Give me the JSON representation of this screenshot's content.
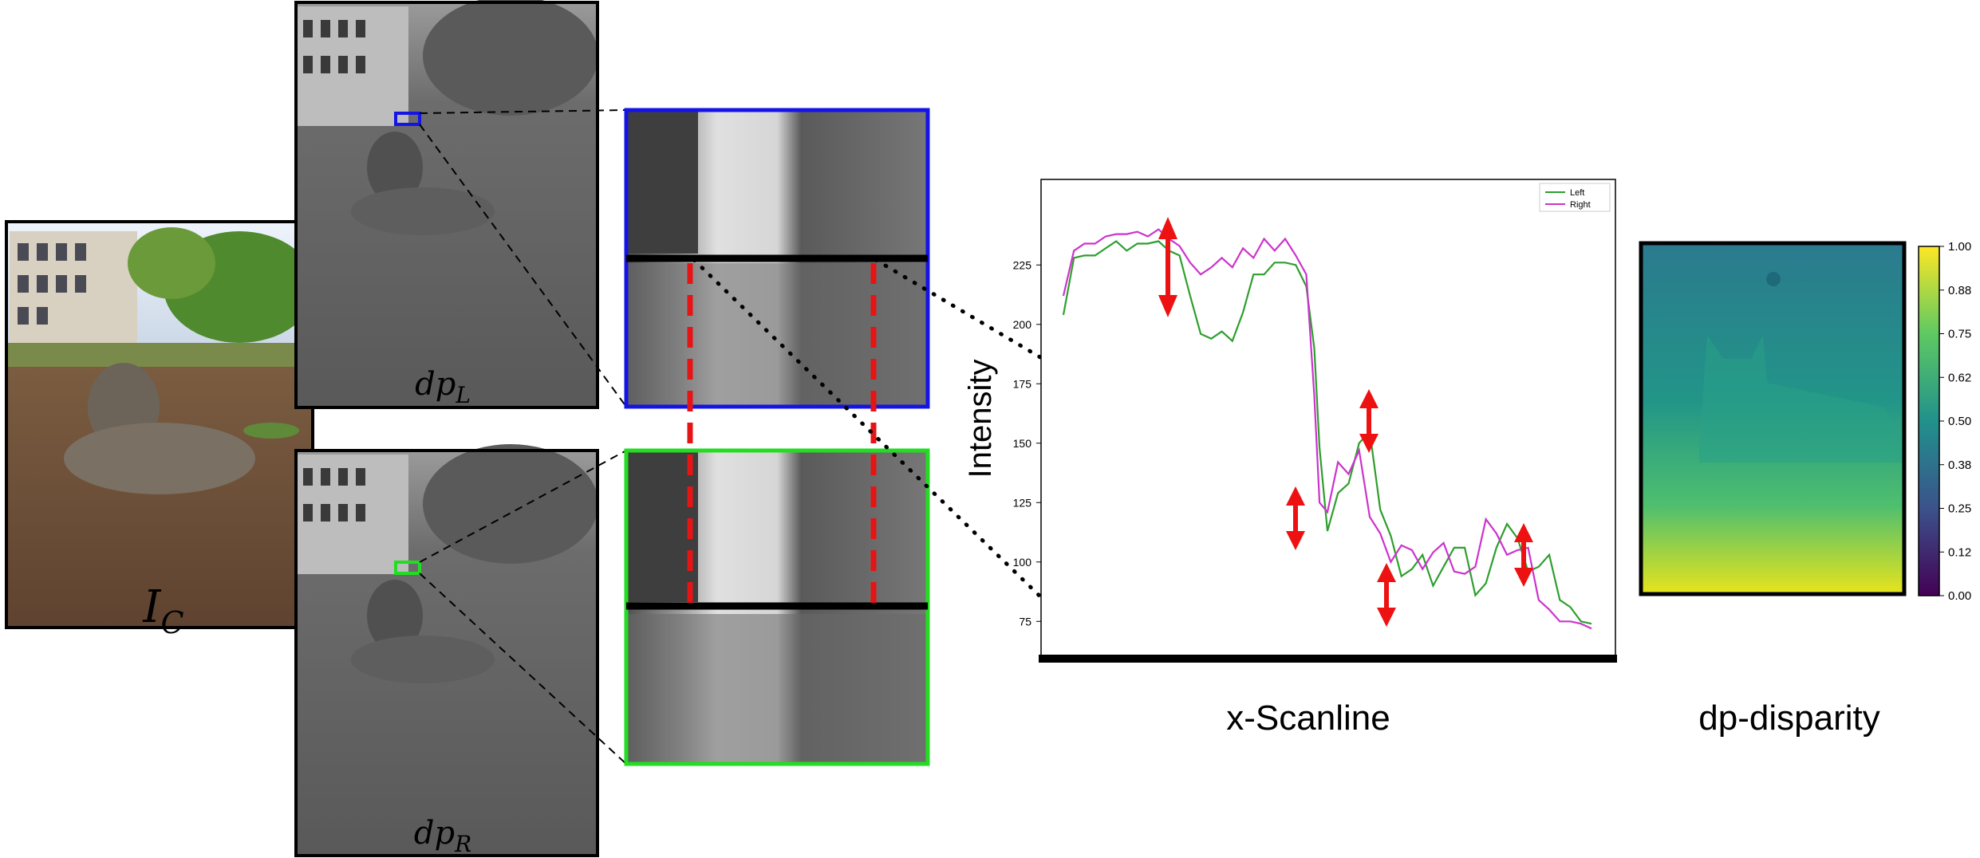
{
  "labels": {
    "color_image": "I",
    "color_image_sub": "C",
    "left_view": "dp",
    "left_view_sub": "L",
    "right_view": "dp",
    "right_view_sub": "R",
    "scanline_caption": "x-Scanline",
    "disparity_caption": "dp-disparity"
  },
  "chart_data": {
    "type": "line",
    "title": "",
    "xlabel": "",
    "ylabel": "Intensity",
    "xlim": [
      0,
      100
    ],
    "ylim": [
      62,
      260
    ],
    "yticks": [
      75,
      100,
      125,
      150,
      175,
      200,
      225
    ],
    "legend": "top-right",
    "series": [
      {
        "name": "Left",
        "color": "#2e9e2e",
        "x": [
          0,
          2,
          4,
          6,
          8,
          10,
          12,
          14,
          16,
          18,
          20,
          22,
          24,
          26,
          28,
          30,
          32,
          34,
          36,
          38,
          40,
          42,
          44,
          46,
          47.5,
          48.5,
          50,
          52,
          54,
          56,
          58,
          60,
          62,
          64,
          66,
          68,
          70,
          72,
          74,
          76,
          78,
          80,
          82,
          84,
          86,
          88,
          90,
          92,
          94,
          96,
          98,
          100
        ],
        "values": [
          204,
          228,
          229,
          229,
          232,
          235,
          231,
          234,
          234,
          235,
          231,
          229,
          212,
          196,
          194,
          197,
          193,
          205,
          221,
          221,
          226,
          226,
          225,
          216,
          190,
          148,
          113,
          129,
          133,
          150,
          155,
          122,
          111,
          94,
          97,
          103,
          90,
          98,
          106,
          106,
          86,
          91,
          106,
          116,
          110,
          96,
          98,
          103,
          84,
          81,
          75,
          74
        ]
      },
      {
        "name": "Right",
        "color": "#cc33cc",
        "x": [
          0,
          2,
          4,
          6,
          8,
          10,
          12,
          14,
          16,
          18,
          20,
          22,
          24,
          26,
          28,
          30,
          32,
          34,
          36,
          38,
          40,
          42,
          44,
          46,
          47.5,
          48.5,
          50,
          52,
          54,
          56,
          58,
          60,
          62,
          64,
          66,
          68,
          70,
          72,
          74,
          76,
          78,
          80,
          82,
          84,
          86,
          88,
          90,
          92,
          94,
          96,
          98,
          100
        ],
        "values": [
          212,
          231,
          234,
          234,
          237,
          238,
          238,
          239,
          237,
          240,
          236,
          233,
          226,
          221,
          224,
          228,
          224,
          232,
          228,
          236,
          231,
          236,
          229,
          221,
          170,
          125,
          121,
          142,
          137,
          147,
          119,
          112,
          100,
          107,
          105,
          97,
          104,
          108,
          96,
          95,
          98,
          118,
          112,
          103,
          105,
          106,
          84,
          80,
          75,
          75,
          74,
          72
        ]
      }
    ]
  },
  "colorbar": {
    "ticks": [
      "1.00",
      "0.88",
      "0.75",
      "0.62",
      "0.50",
      "0.38",
      "0.25",
      "0.12",
      "0.00"
    ],
    "colors": [
      "#fde725",
      "#5ec962",
      "#21918c",
      "#3b528b",
      "#440154"
    ]
  },
  "colors": {
    "left_view_zoom": "#1414e6",
    "right_view_zoom": "#22dd22",
    "correspondence": "#e61414",
    "disparity_arrow": "#ee1111"
  }
}
